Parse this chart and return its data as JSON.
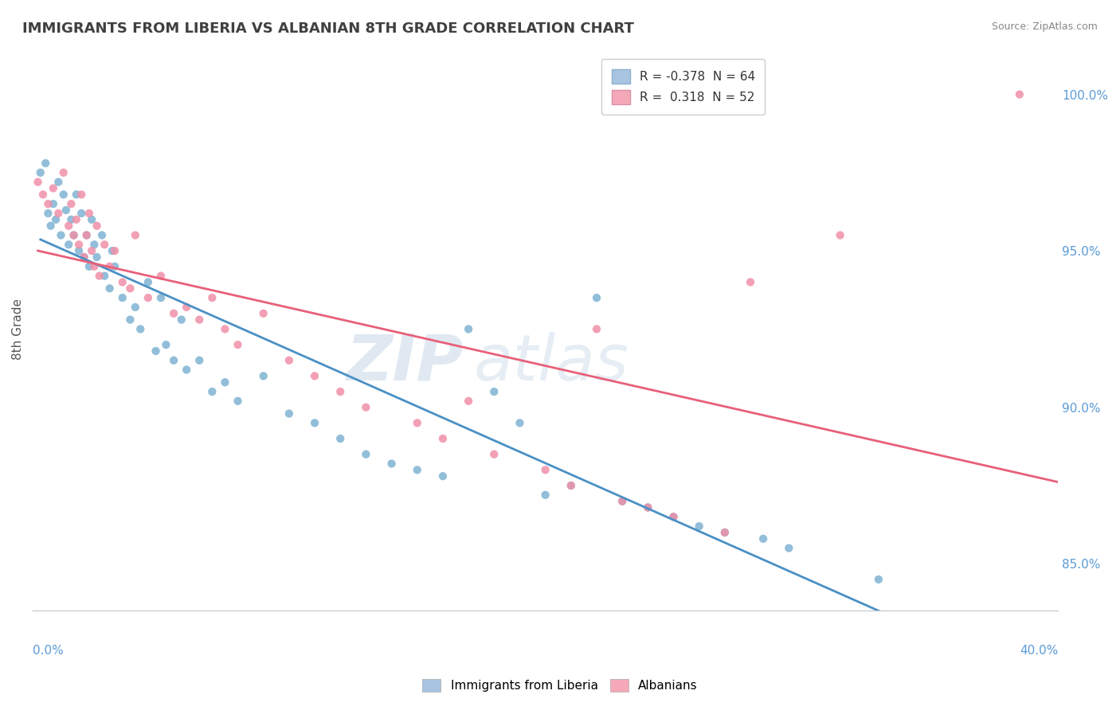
{
  "title": "IMMIGRANTS FROM LIBERIA VS ALBANIAN 8TH GRADE CORRELATION CHART",
  "source": "Source: ZipAtlas.com",
  "ylabel_label": "8th Grade",
  "xlim": [
    0.0,
    40.0
  ],
  "ylim": [
    83.5,
    101.5
  ],
  "legend_entries": [
    {
      "label": "R = -0.378  N = 64",
      "color": "#a8c4e0"
    },
    {
      "label": "R =  0.318  N = 52",
      "color": "#f4a8b8"
    }
  ],
  "legend_bottom": [
    "Immigrants from Liberia",
    "Albanians"
  ],
  "series1_color": "#7fb3d3",
  "series2_color": "#f090a8",
  "trendline1_color": "#4a90c4",
  "trendline2_color": "#e8607a",
  "trendline_dashed_color": "#b0b0b0",
  "watermark": "ZIPatlas",
  "background_color": "#ffffff",
  "grid_color": "#d0d8e8",
  "title_color": "#404040",
  "axis_color": "#5b9bd5",
  "series1_x": [
    0.3,
    0.5,
    0.6,
    0.7,
    0.8,
    0.9,
    1.0,
    1.1,
    1.2,
    1.3,
    1.4,
    1.5,
    1.6,
    1.7,
    1.8,
    1.9,
    2.0,
    2.1,
    2.2,
    2.3,
    2.4,
    2.5,
    2.7,
    2.8,
    3.0,
    3.1,
    3.2,
    3.5,
    3.8,
    4.0,
    4.2,
    4.5,
    4.8,
    5.0,
    5.2,
    5.5,
    5.8,
    6.0,
    6.5,
    7.0,
    7.5,
    8.0,
    9.0,
    10.0,
    11.0,
    12.0,
    13.0,
    14.0,
    15.0,
    16.0,
    17.0,
    18.0,
    19.0,
    20.0,
    21.0,
    22.0,
    23.0,
    24.0,
    25.0,
    26.0,
    27.0,
    28.5,
    29.5,
    33.0
  ],
  "series1_y": [
    97.5,
    97.8,
    96.2,
    95.8,
    96.5,
    96.0,
    97.2,
    95.5,
    96.8,
    96.3,
    95.2,
    96.0,
    95.5,
    96.8,
    95.0,
    96.2,
    94.8,
    95.5,
    94.5,
    96.0,
    95.2,
    94.8,
    95.5,
    94.2,
    93.8,
    95.0,
    94.5,
    93.5,
    92.8,
    93.2,
    92.5,
    94.0,
    91.8,
    93.5,
    92.0,
    91.5,
    92.8,
    91.2,
    91.5,
    90.5,
    90.8,
    90.2,
    91.0,
    89.8,
    89.5,
    89.0,
    88.5,
    88.2,
    88.0,
    87.8,
    92.5,
    90.5,
    89.5,
    87.2,
    87.5,
    93.5,
    87.0,
    86.8,
    86.5,
    86.2,
    86.0,
    85.8,
    85.5,
    84.5
  ],
  "series2_x": [
    0.2,
    0.4,
    0.6,
    0.8,
    1.0,
    1.2,
    1.4,
    1.5,
    1.6,
    1.7,
    1.8,
    1.9,
    2.0,
    2.1,
    2.2,
    2.3,
    2.4,
    2.5,
    2.6,
    2.8,
    3.0,
    3.2,
    3.5,
    3.8,
    4.0,
    4.5,
    5.0,
    5.5,
    6.0,
    6.5,
    7.0,
    7.5,
    8.0,
    9.0,
    10.0,
    11.0,
    12.0,
    13.0,
    15.0,
    16.0,
    17.0,
    18.0,
    20.0,
    21.0,
    22.0,
    23.0,
    24.0,
    25.0,
    27.0,
    28.0,
    31.5,
    38.5
  ],
  "series2_y": [
    97.2,
    96.8,
    96.5,
    97.0,
    96.2,
    97.5,
    95.8,
    96.5,
    95.5,
    96.0,
    95.2,
    96.8,
    94.8,
    95.5,
    96.2,
    95.0,
    94.5,
    95.8,
    94.2,
    95.2,
    94.5,
    95.0,
    94.0,
    93.8,
    95.5,
    93.5,
    94.2,
    93.0,
    93.2,
    92.8,
    93.5,
    92.5,
    92.0,
    93.0,
    91.5,
    91.0,
    90.5,
    90.0,
    89.5,
    89.0,
    90.2,
    88.5,
    88.0,
    87.5,
    92.5,
    87.0,
    86.8,
    86.5,
    86.0,
    94.0,
    95.5,
    100.0
  ],
  "ytick_vals": [
    85.0,
    90.0,
    95.0,
    100.0
  ],
  "ytick_labels": [
    "85.0%",
    "90.0%",
    "95.0%",
    "100.0%"
  ]
}
